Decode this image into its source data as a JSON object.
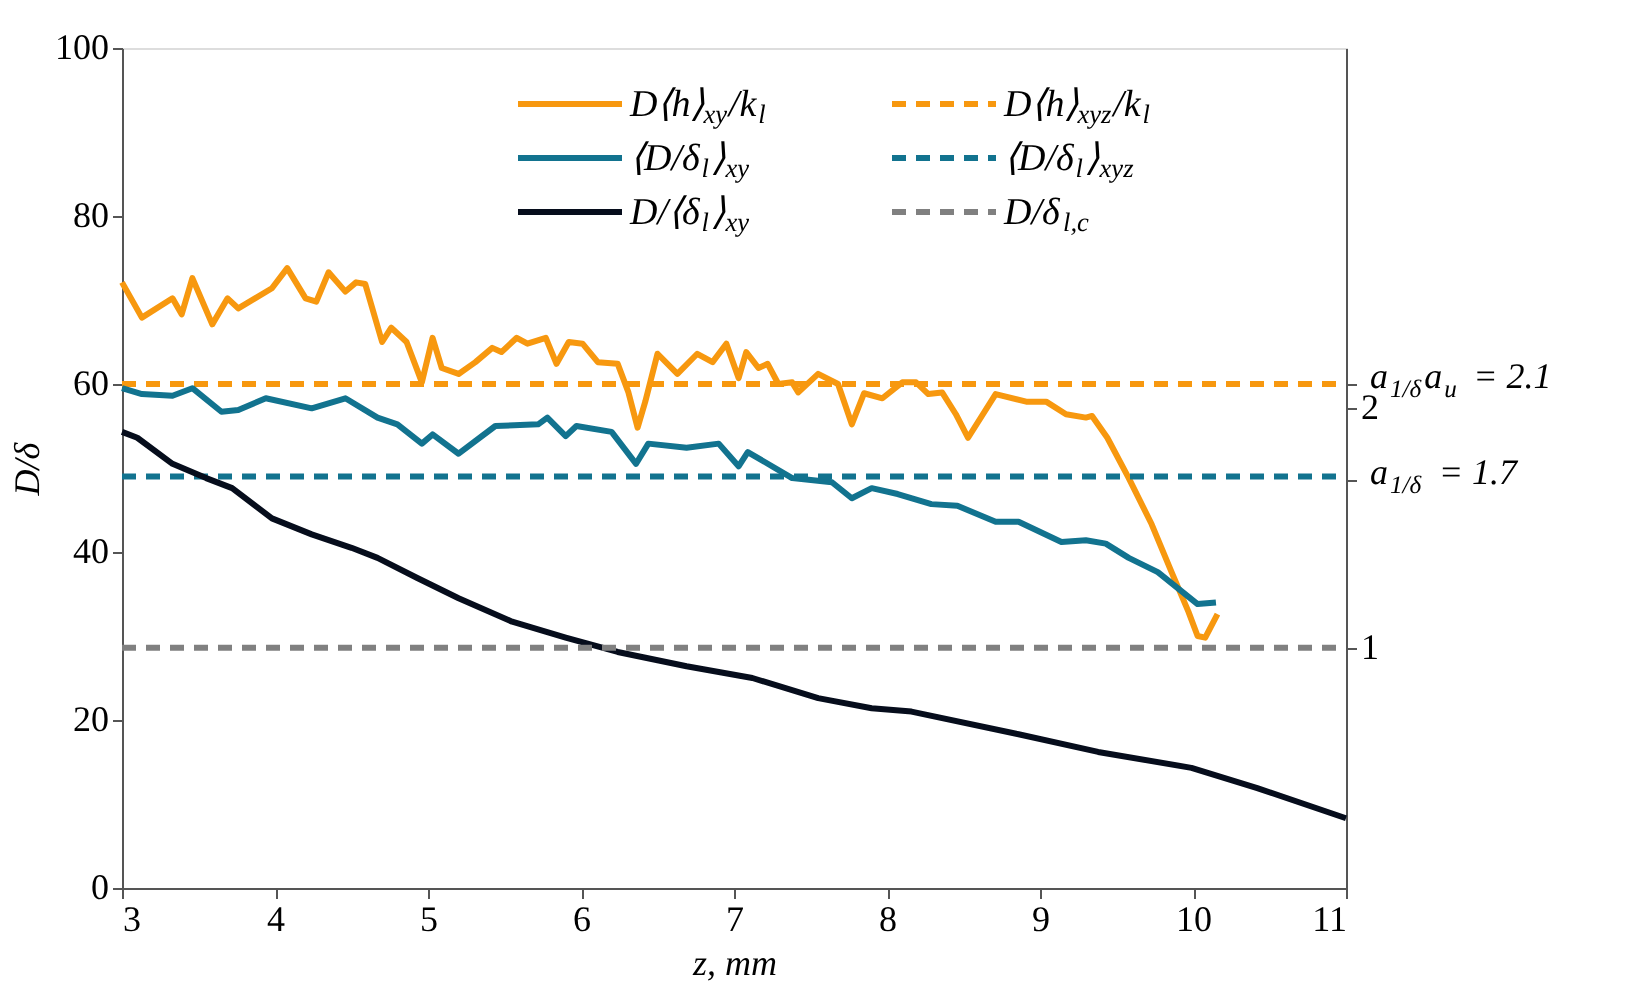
{
  "chart_data": {
    "type": "line",
    "xlabel": "z, mm",
    "ylabel": "D/δ",
    "xlim": [
      3,
      11
    ],
    "xticks": [
      3,
      4,
      5,
      6,
      7,
      8,
      9,
      10,
      11
    ],
    "ylim": [
      0,
      100
    ],
    "yticks": [
      0,
      20,
      40,
      60,
      80,
      100
    ],
    "y2lim": [
      0,
      3.5
    ],
    "y2ticks": [
      1,
      2,
      {
        "value": 1.7,
        "label": "a$_{1/δ}$ = 1.7"
      },
      {
        "value": 2.1,
        "label": "a$_{1/δ}$a$_{u}$ = 2.1"
      }
    ],
    "grid": false,
    "legend": "top right",
    "marker": "none",
    "series": [
      {
        "name": "D⟨h⟩$_{xy}$/k$_{l}$",
        "color": "#f7980f",
        "line_style": "solid",
        "x": [
          3.0,
          3.13,
          3.33,
          3.39,
          3.46,
          3.59,
          3.69,
          3.76,
          3.98,
          4.08,
          4.2,
          4.27,
          4.35,
          4.46,
          4.53,
          4.59,
          4.7,
          4.76,
          4.86,
          4.96,
          5.03,
          5.09,
          5.2,
          5.31,
          5.42,
          5.48,
          5.58,
          5.65,
          5.77,
          5.84,
          5.92,
          6.01,
          6.11,
          6.24,
          6.31,
          6.37,
          6.42,
          6.5,
          6.63,
          6.76,
          6.86,
          6.95,
          7.03,
          7.08,
          7.16,
          7.22,
          7.29,
          7.38,
          7.42,
          7.55,
          7.68,
          7.77,
          7.85,
          7.97,
          8.1,
          8.19,
          8.27,
          8.36,
          8.45,
          8.53,
          8.71,
          8.91,
          9.04,
          9.17,
          9.3,
          9.34,
          9.44,
          9.58,
          9.73,
          9.86,
          9.97,
          10.03,
          10.08,
          10.16
        ],
        "values": [
          72.1,
          67.9,
          70.2,
          68.3,
          72.6,
          67.1,
          70.2,
          69.0,
          71.4,
          73.8,
          70.2,
          69.8,
          73.3,
          71.0,
          72.1,
          71.9,
          65.0,
          66.7,
          65.0,
          60.2,
          65.5,
          61.9,
          61.2,
          62.6,
          64.3,
          63.8,
          65.5,
          64.8,
          65.5,
          62.4,
          65.0,
          64.8,
          62.6,
          62.4,
          59.0,
          54.8,
          57.9,
          63.6,
          61.2,
          63.6,
          62.6,
          64.8,
          60.7,
          63.8,
          61.9,
          62.4,
          60.0,
          60.2,
          59.0,
          61.2,
          60.0,
          55.2,
          58.9,
          58.3,
          60.2,
          60.2,
          58.8,
          59.0,
          56.4,
          53.6,
          58.8,
          57.9,
          57.9,
          56.4,
          56.0,
          56.2,
          53.6,
          48.8,
          43.3,
          37.6,
          32.9,
          30.0,
          29.8,
          32.6
        ]
      },
      {
        "name": "D⟨h⟩$_{xyz}$/k$_{l}$",
        "color": "#f7980f",
        "line_style": "dashed",
        "x": [
          3,
          11
        ],
        "values": [
          60,
          60
        ]
      },
      {
        "name": "⟨D/δ$_{l}$⟩$_{xy}$",
        "color": "#12738f",
        "line_style": "solid",
        "x": [
          3.0,
          3.13,
          3.33,
          3.46,
          3.65,
          3.76,
          3.94,
          4.24,
          4.46,
          4.67,
          4.8,
          4.96,
          5.03,
          5.2,
          5.44,
          5.72,
          5.78,
          5.9,
          5.97,
          6.2,
          6.36,
          6.44,
          6.69,
          6.9,
          7.03,
          7.09,
          7.38,
          7.64,
          7.77,
          7.9,
          8.07,
          8.29,
          8.46,
          8.71,
          8.86,
          9.14,
          9.3,
          9.43,
          9.58,
          9.77,
          9.9,
          10.03,
          10.15
        ],
        "values": [
          59.5,
          58.8,
          58.6,
          59.5,
          56.7,
          56.9,
          58.3,
          57.1,
          58.3,
          56.0,
          55.2,
          52.9,
          54.0,
          51.7,
          55.0,
          55.2,
          56.0,
          53.8,
          55.0,
          54.3,
          50.5,
          52.9,
          52.4,
          52.9,
          50.2,
          51.9,
          48.8,
          48.3,
          46.4,
          47.6,
          46.9,
          45.7,
          45.5,
          43.6,
          43.6,
          41.2,
          41.4,
          41.0,
          39.3,
          37.6,
          35.7,
          33.8,
          34.0
        ]
      },
      {
        "name": "⟨D/δ$_{l}$⟩$_{xyz}$",
        "color": "#12738f",
        "line_style": "dashed",
        "x": [
          3,
          11
        ],
        "values": [
          49,
          49
        ]
      },
      {
        "name": "D/⟨δ$_{l}$⟩$_{xy}$",
        "color": "#060d1c",
        "line_style": "solid",
        "x": [
          3.0,
          3.1,
          3.33,
          3.55,
          3.72,
          3.98,
          4.24,
          4.5,
          4.67,
          4.93,
          5.2,
          5.55,
          5.9,
          6.24,
          6.69,
          7.12,
          7.55,
          7.9,
          8.16,
          8.86,
          9.38,
          9.99,
          10.42,
          11.0
        ],
        "values": [
          54.3,
          53.6,
          50.5,
          48.8,
          47.6,
          44.0,
          42.1,
          40.5,
          39.3,
          36.9,
          34.5,
          31.7,
          29.8,
          28.1,
          26.4,
          25.0,
          22.6,
          21.4,
          21.0,
          18.3,
          16.2,
          14.3,
          11.9,
          8.3
        ]
      },
      {
        "name": "D/δ$_{l,c}$",
        "color": "#808080",
        "line_style": "dashed",
        "x": [
          3,
          11
        ],
        "values": [
          28.6,
          28.6
        ]
      }
    ]
  }
}
